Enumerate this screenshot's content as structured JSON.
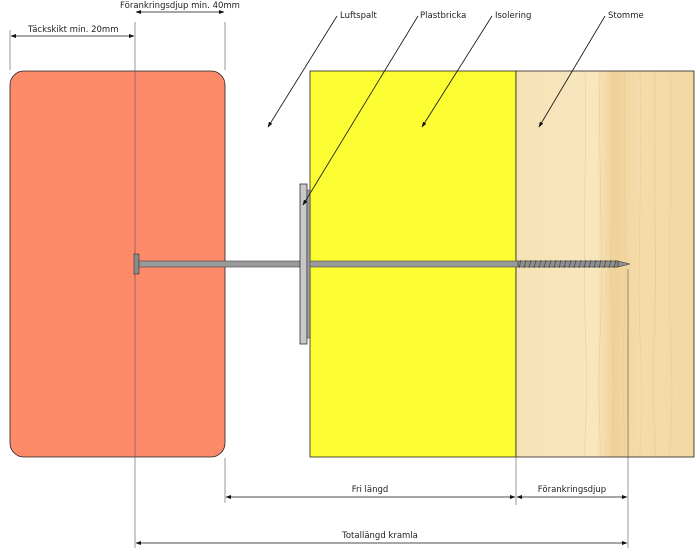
{
  "labels": {
    "anchor_depth_top": "Förankringsdjup min. 40mm",
    "cover_min": "Täckskikt min. 20mm",
    "air_gap": "Luftspalt",
    "plastic_washer": "Plastbricka",
    "insulation": "Isolering",
    "frame": "Stomme",
    "free_length": "Fri längd",
    "anchor_depth": "Förankringsdjup",
    "total_length": "Totallängd kramla"
  },
  "colors": {
    "brick": "#fd8b69",
    "insulation": "#fdfd33",
    "wood": "#f7e0b0",
    "wood_grain": "#e9c789",
    "steel": "#9a9a9a",
    "washer": "#c8c8c8",
    "line": "#111111"
  }
}
